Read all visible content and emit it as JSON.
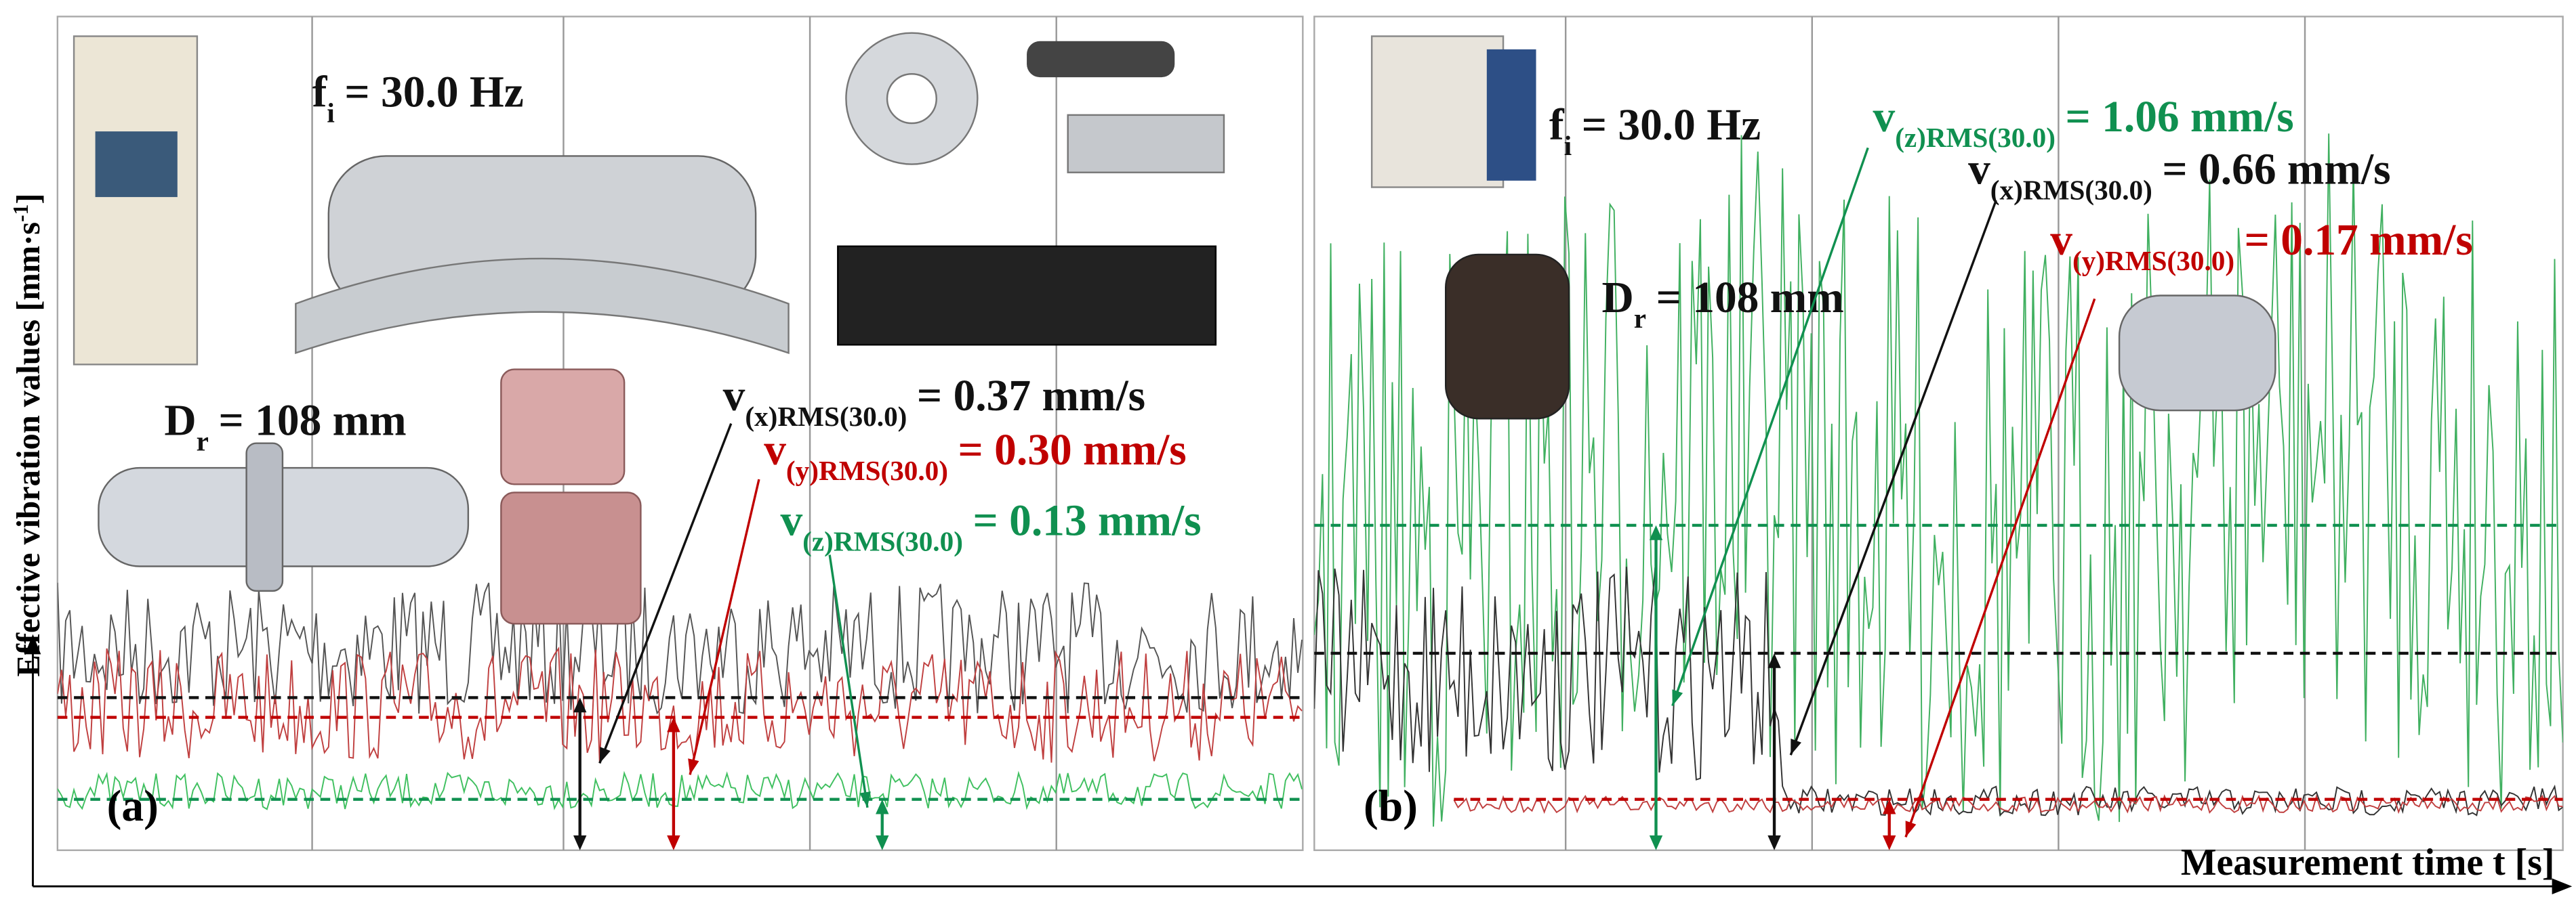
{
  "y_axis_label": {
    "text": "Effective vibration values [mm·s",
    "superscript": "-1",
    "suffix": "]"
  },
  "x_axis_label": "Measurement time t [s]",
  "panels": [
    {
      "label": "(a)",
      "frequency": {
        "symbol": "f",
        "subscript": "i",
        "value": "= 30.0 Hz"
      },
      "diameter": {
        "symbol": "D",
        "subscript": "r",
        "value": "= 108 mm"
      },
      "annotations": [
        {
          "symbol": "v",
          "subscript": "(x)RMS(30.0)",
          "value": "= 0.37 mm/s",
          "color": "#111111"
        },
        {
          "symbol": "v",
          "subscript": "(y)RMS(30.0)",
          "value": "= 0.30 mm/s",
          "color": "#c00000"
        },
        {
          "symbol": "v",
          "subscript": "(z)RMS(30.0)",
          "value": "= 0.13 mm/s",
          "color": "#109050"
        }
      ]
    },
    {
      "label": "(b)",
      "frequency": {
        "symbol": "f",
        "subscript": "i",
        "value": "= 30.0 Hz"
      },
      "diameter": {
        "symbol": "D",
        "subscript": "r",
        "value": "= 108 mm"
      },
      "annotations": [
        {
          "symbol": "v",
          "subscript": "(z)RMS(30.0)",
          "value": "= 1.06 mm/s",
          "color": "#109050"
        },
        {
          "symbol": "v",
          "subscript": "(x)RMS(30.0)",
          "value": "= 0.66 mm/s",
          "color": "#111111"
        },
        {
          "symbol": "v",
          "subscript": "(y)RMS(30.0)",
          "value": "= 0.17 mm/s",
          "color": "#c00000"
        }
      ]
    }
  ]
}
